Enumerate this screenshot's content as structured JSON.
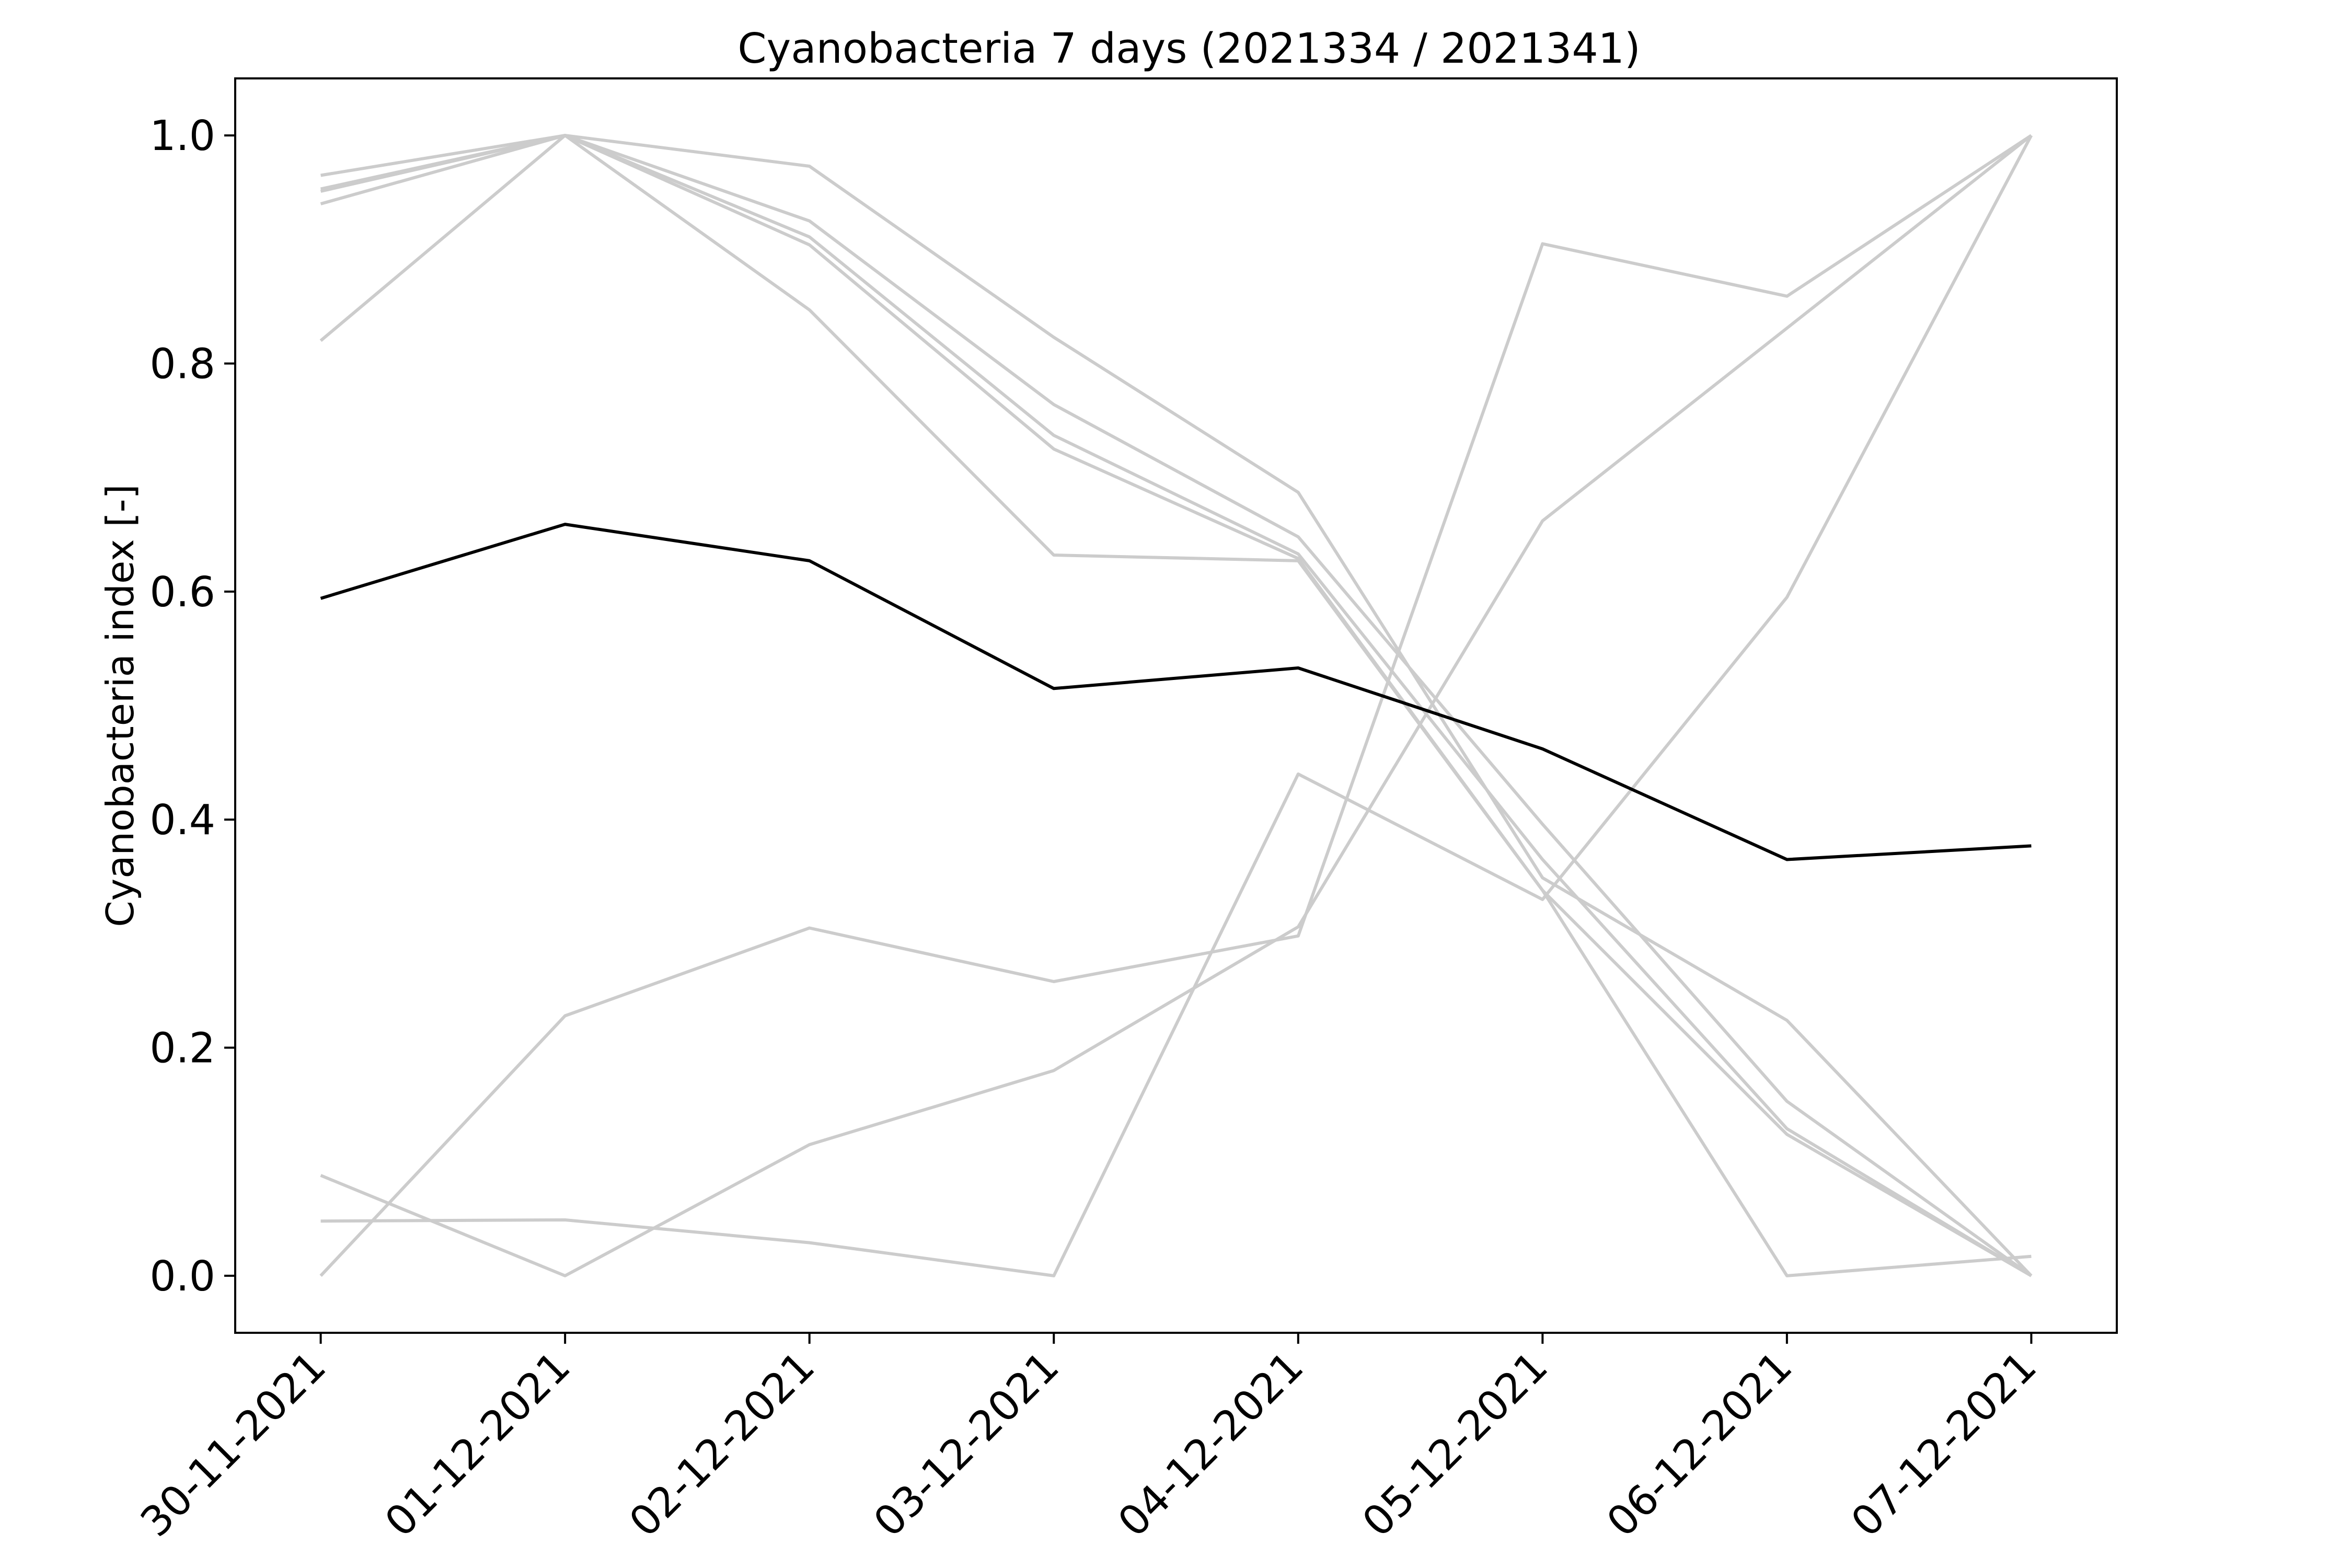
{
  "chart_data": {
    "type": "line",
    "title": "Cyanobacteria 7 days (2021334 / 2021341)",
    "ylabel": "Cyanobacteria index [-]",
    "xlabel": "",
    "categories": [
      "30-11-2021",
      "01-12-2021",
      "02-12-2021",
      "03-12-2021",
      "04-12-2021",
      "05-12-2021",
      "06-12-2021",
      "07-12-2021"
    ],
    "ylim": [
      -0.05,
      1.05
    ],
    "yticks": [
      "0.0",
      "0.2",
      "0.4",
      "0.6",
      "0.8",
      "1.0"
    ],
    "ytick_values": [
      0.0,
      0.2,
      0.4,
      0.6,
      0.8,
      1.0
    ],
    "grid": false,
    "colors": {
      "individual": "#cccccc",
      "mean": "#000000",
      "axes": "#000000",
      "background": "#ffffff"
    },
    "series": [
      {
        "values": [
          0.965,
          1.0,
          0.973,
          0.823,
          0.687,
          0.349,
          0.224,
          0.0
        ]
      },
      {
        "values": [
          0.953,
          1.0,
          0.925,
          0.764,
          0.648,
          0.396,
          0.153,
          0.0
        ]
      },
      {
        "values": [
          0.94,
          1.0,
          0.911,
          0.737,
          0.633,
          0.365,
          0.129,
          0.0
        ]
      },
      {
        "values": [
          0.82,
          1.0,
          0.904,
          0.725,
          0.629,
          0.338,
          0.124,
          0.0
        ]
      },
      {
        "values": [
          0.951,
          1.0,
          0.847,
          0.632,
          0.627,
          0.338,
          0.0,
          0.017
        ]
      },
      {
        "values": [
          0.088,
          0.0,
          0.115,
          0.18,
          0.306,
          0.662,
          0.831,
          1.0
        ]
      },
      {
        "values": [
          0.048,
          0.049,
          0.029,
          0.0,
          0.44,
          0.33,
          0.595,
          1.0
        ]
      },
      {
        "values": [
          0.0,
          0.228,
          0.305,
          0.258,
          0.298,
          0.905,
          0.859,
          1.0
        ]
      },
      {
        "values": [
          0.594,
          0.659,
          0.627,
          0.515,
          0.533,
          0.462,
          0.365,
          0.377
        ],
        "role": "mean"
      }
    ]
  }
}
